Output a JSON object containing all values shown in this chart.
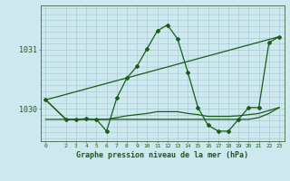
{
  "bg_color": "#cde8ee",
  "grid_color": "#aaccd4",
  "line_color": "#1a5c1a",
  "title": "Graphe pression niveau de la mer (hPa)",
  "ylabel_ticks": [
    1030,
    1031
  ],
  "xlim": [
    -0.5,
    23.5
  ],
  "ylim": [
    1029.45,
    1031.75
  ],
  "xticks": [
    0,
    2,
    3,
    4,
    5,
    6,
    7,
    8,
    9,
    10,
    11,
    12,
    13,
    14,
    15,
    16,
    17,
    18,
    19,
    20,
    21,
    22,
    23
  ],
  "hgrid_vals": [
    1029.5,
    1029.6,
    1029.7,
    1029.8,
    1029.9,
    1030.0,
    1030.1,
    1030.2,
    1030.3,
    1030.4,
    1030.5,
    1030.6,
    1030.7,
    1030.8,
    1030.9,
    1031.0,
    1031.1,
    1031.2,
    1031.3,
    1031.4,
    1031.5,
    1031.6,
    1031.7
  ],
  "series": [
    {
      "x": [
        0,
        2,
        3,
        4,
        5,
        6,
        7,
        8,
        9,
        10,
        11,
        12,
        13,
        14,
        15,
        16,
        17,
        18,
        19,
        20,
        21,
        22,
        23
      ],
      "y": [
        1030.15,
        1029.82,
        1029.82,
        1029.83,
        1029.82,
        1029.62,
        1030.18,
        1030.52,
        1030.72,
        1031.02,
        1031.32,
        1031.42,
        1031.18,
        1030.62,
        1030.02,
        1029.72,
        1029.62,
        1029.62,
        1029.82,
        1030.02,
        1030.02,
        1031.12,
        1031.22
      ],
      "marker": "D",
      "markersize": 2.0,
      "linewidth": 0.9
    },
    {
      "x": [
        0,
        23
      ],
      "y": [
        1030.15,
        1031.22
      ],
      "marker": null,
      "markersize": 0,
      "linewidth": 0.9
    },
    {
      "x": [
        0,
        2,
        3,
        4,
        5,
        6,
        7,
        8,
        9,
        10,
        11,
        12,
        13,
        14,
        15,
        16,
        17,
        18,
        19,
        20,
        21,
        22,
        23
      ],
      "y": [
        1029.82,
        1029.82,
        1029.82,
        1029.82,
        1029.82,
        1029.82,
        1029.82,
        1029.82,
        1029.82,
        1029.82,
        1029.82,
        1029.82,
        1029.82,
        1029.82,
        1029.82,
        1029.82,
        1029.82,
        1029.82,
        1029.82,
        1029.82,
        1029.85,
        1029.92,
        1030.02
      ],
      "marker": null,
      "markersize": 0,
      "linewidth": 0.9
    },
    {
      "x": [
        0,
        2,
        3,
        4,
        5,
        6,
        7,
        8,
        9,
        10,
        11,
        12,
        13,
        14,
        15,
        16,
        17,
        18,
        19,
        20,
        21,
        22,
        23
      ],
      "y": [
        1030.15,
        1029.82,
        1029.82,
        1029.82,
        1029.82,
        1029.82,
        1029.85,
        1029.88,
        1029.9,
        1029.92,
        1029.95,
        1029.95,
        1029.95,
        1029.92,
        1029.9,
        1029.87,
        1029.87,
        1029.87,
        1029.88,
        1029.9,
        1029.92,
        1029.97,
        1030.02
      ],
      "marker": null,
      "markersize": 0,
      "linewidth": 0.9
    }
  ]
}
